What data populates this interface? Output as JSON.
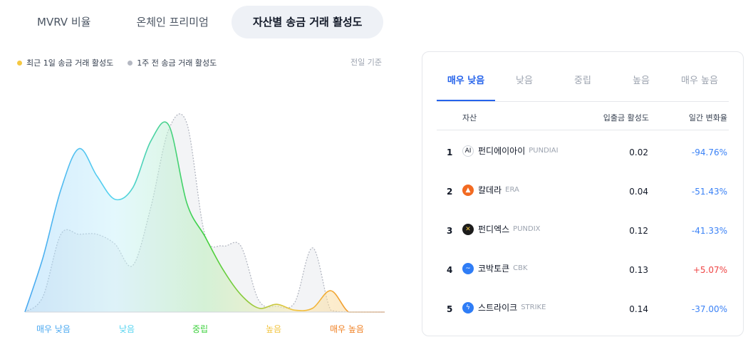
{
  "tabs": [
    {
      "label": "MVRV 비율",
      "active": false
    },
    {
      "label": "온체인 프리미엄",
      "active": false
    },
    {
      "label": "자산별 송금 거래 활성도",
      "active": true
    }
  ],
  "chart_data": {
    "type": "area",
    "title": "",
    "basis_note": "전일 기준",
    "legend_position": "top-left",
    "categories": [
      "매우 낮음",
      "낮음",
      "중립",
      "높음",
      "매우 높음"
    ],
    "category_colors": [
      "#4aa8f0",
      "#56d4f0",
      "#3dd13d",
      "#f2c440",
      "#f07f20"
    ],
    "x": [
      0,
      0.5,
      1,
      1.5,
      2,
      2.5,
      3,
      3.5,
      4,
      4.5,
      5,
      5.5,
      6,
      6.5,
      7,
      7.5,
      8,
      8.5,
      9,
      9.5,
      10
    ],
    "series": [
      {
        "name": "최근 1일 송금 거래 활성도",
        "color": "#f5c842",
        "style": "solid",
        "values": [
          0,
          28,
          63,
          84,
          70,
          58,
          64,
          88,
          96,
          56,
          39,
          22,
          9,
          2,
          4,
          1,
          2,
          11,
          0,
          0,
          0
        ]
      },
      {
        "name": "1주 전 송금 거래 활성도",
        "color": "#b4b8c2",
        "style": "dashed",
        "values": [
          0,
          8,
          40,
          40,
          40,
          35,
          24,
          54,
          94,
          97,
          40,
          34,
          34,
          6,
          3,
          5,
          33,
          1,
          0,
          0,
          0
        ]
      }
    ],
    "xlim": [
      0,
      10
    ],
    "ylim": [
      0,
      100
    ],
    "grid": false
  },
  "panel": {
    "tabs": [
      {
        "label": "매우 낮음",
        "active": true
      },
      {
        "label": "낮음",
        "active": false
      },
      {
        "label": "중립",
        "active": false
      },
      {
        "label": "높음",
        "active": false
      },
      {
        "label": "매우 높음",
        "active": false
      }
    ],
    "columns": {
      "asset": "자산",
      "activity": "입출금 활성도",
      "change": "일간 변화율"
    },
    "rows": [
      {
        "rank": "1",
        "name": "펀디에이아이",
        "symbol": "PUNDIAI",
        "activity": "0.02",
        "change": "-94.76%",
        "icon": "pundiai-logo-icon",
        "icon_bg": "#ffffff",
        "icon_text": "AI",
        "icon_color": "#111827"
      },
      {
        "rank": "2",
        "name": "칼데라",
        "symbol": "ERA",
        "activity": "0.04",
        "change": "-51.43%",
        "icon": "caldera-logo-icon",
        "icon_bg": "#f26a21",
        "icon_text": "▲",
        "icon_color": "#ffffff"
      },
      {
        "rank": "3",
        "name": "펀디엑스",
        "symbol": "PUNDIX",
        "activity": "0.12",
        "change": "-41.33%",
        "icon": "pundix-logo-icon",
        "icon_bg": "#1c1c1c",
        "icon_text": "✕",
        "icon_color": "#f5c842"
      },
      {
        "rank": "4",
        "name": "코박토큰",
        "symbol": "CBK",
        "activity": "0.13",
        "change": "+5.07%",
        "icon": "cobak-logo-icon",
        "icon_bg": "#2f7df6",
        "icon_text": "~",
        "icon_color": "#ffffff"
      },
      {
        "rank": "5",
        "name": "스트라이크",
        "symbol": "STRIKE",
        "activity": "0.14",
        "change": "-37.00%",
        "icon": "strike-logo-icon",
        "icon_bg": "#2f7df6",
        "icon_text": "ϟ",
        "icon_color": "#ffffff"
      }
    ]
  }
}
